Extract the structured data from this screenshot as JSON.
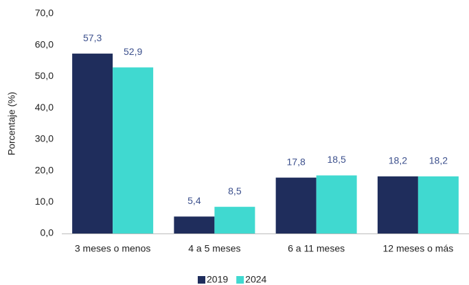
{
  "chart_data": {
    "type": "bar",
    "y_label": "Porcentaje (%)",
    "categories": [
      "3 meses o menos",
      "4 a 5 meses",
      "6 a 11 meses",
      "12 meses o más"
    ],
    "series": [
      {
        "name": "2019",
        "color": "#1f2d5c",
        "values": [
          57.3,
          5.4,
          17.8,
          18.2
        ],
        "value_labels": [
          "57,3",
          "5,4",
          "17,8",
          "18,2"
        ]
      },
      {
        "name": "2024",
        "color": "#40d9d0",
        "values": [
          52.9,
          8.5,
          18.5,
          18.2
        ],
        "value_labels": [
          "52,9",
          "8,5",
          "18,5",
          "18,2"
        ]
      }
    ],
    "ylim": [
      0,
      70
    ],
    "yticks": [
      {
        "value": 0,
        "label": "0,0"
      },
      {
        "value": 10,
        "label": "10,0"
      },
      {
        "value": 20,
        "label": "20,0"
      },
      {
        "value": 30,
        "label": "30,0"
      },
      {
        "value": 40,
        "label": "40,0"
      },
      {
        "value": 50,
        "label": "50,0"
      },
      {
        "value": 60,
        "label": "60,0"
      },
      {
        "value": 70,
        "label": "70,0"
      }
    ],
    "legend": "bottom"
  }
}
